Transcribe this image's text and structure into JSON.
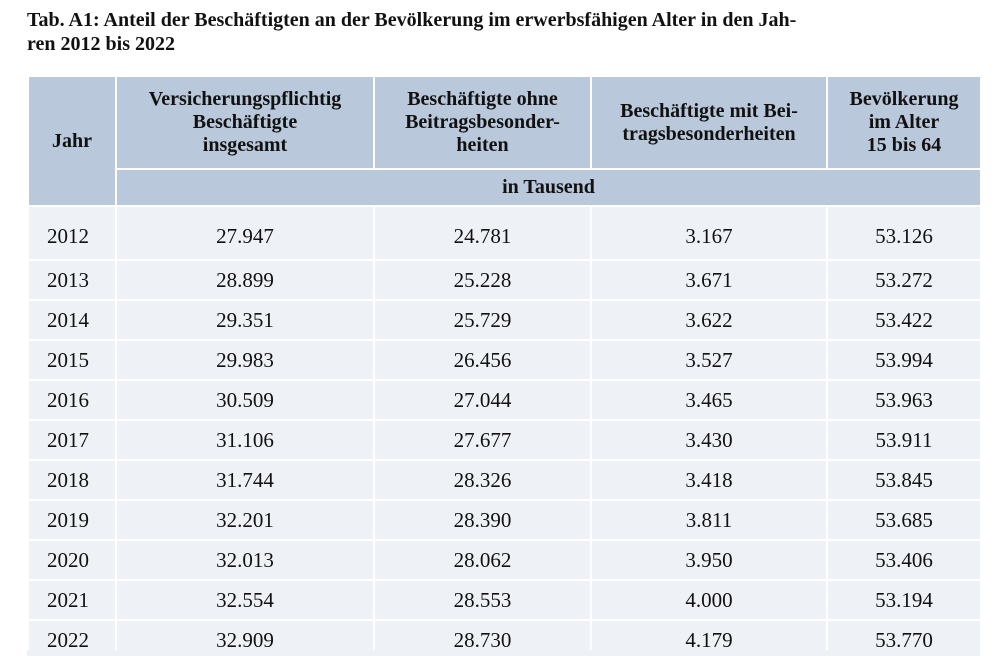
{
  "title": [
    "Tab. A1: Anteil der Beschäftigten an der Bevölkerung im erwerbsfähigen Alter in den Jah-",
    "ren 2012 bis 2022"
  ],
  "table": {
    "headers": [
      [
        "Jahr"
      ],
      [
        "Versicherungspflichtig",
        "Beschäftigte",
        "insgesamt"
      ],
      [
        "Beschäftigte ohne",
        "Beitragsbesonder-",
        "heiten"
      ],
      [
        "Beschäftigte mit Bei-",
        "tragsbesonderheiten"
      ],
      [
        "Bevölkerung",
        "im Alter",
        "15 bis 64"
      ]
    ],
    "unit": "in Tausend",
    "rows": [
      [
        "2012",
        "27.947",
        "24.781",
        "3.167",
        "53.126"
      ],
      [
        "2013",
        "28.899",
        "25.228",
        "3.671",
        "53.272"
      ],
      [
        "2014",
        "29.351",
        "25.729",
        "3.622",
        "53.422"
      ],
      [
        "2015",
        "29.983",
        "26.456",
        "3.527",
        "53.994"
      ],
      [
        "2016",
        "30.509",
        "27.044",
        "3.465",
        "53.963"
      ],
      [
        "2017",
        "31.106",
        "27.677",
        "3.430",
        "53.911"
      ],
      [
        "2018",
        "31.744",
        "28.326",
        "3.418",
        "53.845"
      ],
      [
        "2019",
        "32.201",
        "28.390",
        "3.811",
        "53.685"
      ],
      [
        "2020",
        "32.013",
        "28.062",
        "3.950",
        "53.406"
      ],
      [
        "2021",
        "32.554",
        "28.553",
        "4.000",
        "53.194"
      ],
      [
        "2022",
        "32.909",
        "28.730",
        "4.179",
        "53.770"
      ]
    ]
  }
}
